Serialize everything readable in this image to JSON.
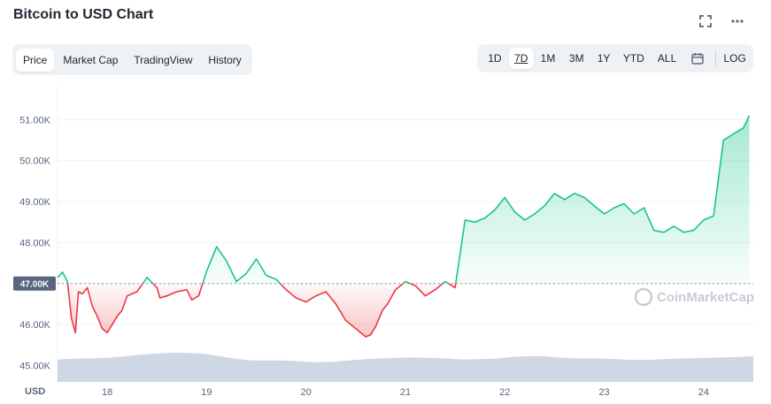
{
  "page": {
    "title": "Bitcoin to USD Chart"
  },
  "header_icons": [
    {
      "name": "expand-icon"
    },
    {
      "name": "more-options-icon"
    }
  ],
  "tabs": [
    {
      "label": "Price",
      "active": true
    },
    {
      "label": "Market Cap",
      "active": false
    },
    {
      "label": "TradingView",
      "active": false
    },
    {
      "label": "History",
      "active": false
    }
  ],
  "ranges": [
    {
      "label": "1D",
      "active": false
    },
    {
      "label": "7D",
      "active": true
    },
    {
      "label": "1M",
      "active": false
    },
    {
      "label": "3M",
      "active": false
    },
    {
      "label": "1Y",
      "active": false
    },
    {
      "label": "YTD",
      "active": false
    },
    {
      "label": "ALL",
      "active": false
    }
  ],
  "calendar_icon": "calendar-icon",
  "log_label": "LOG",
  "watermark": "CoinMarketCap",
  "colors": {
    "up": "#16c784",
    "down": "#ea3943",
    "volume": "#cfd6e4",
    "grid": "#eff2f5",
    "current_badge": "#58667e"
  },
  "chart_data": {
    "type": "line",
    "currency_label": "USD",
    "y_ticks": [
      "45.00K",
      "46.00K",
      "47.00K",
      "48.00K",
      "49.00K",
      "50.00K",
      "51.00K"
    ],
    "y_tick_values": [
      45000,
      46000,
      47000,
      48000,
      49000,
      50000,
      51000
    ],
    "ylim": [
      44600,
      51850
    ],
    "x_ticks": [
      "18",
      "19",
      "20",
      "21",
      "22",
      "23",
      "24"
    ],
    "x_tick_values": [
      0.5,
      1.5,
      2.5,
      3.5,
      4.5,
      5.5,
      6.5
    ],
    "xlim": [
      0,
      7
    ],
    "baseline_label": "47.00K",
    "baseline": 47000,
    "grid": true,
    "series": [
      {
        "x": [
          0.0,
          0.05,
          0.1,
          0.14,
          0.18,
          0.21,
          0.25,
          0.3,
          0.35,
          0.4,
          0.45,
          0.5,
          0.55,
          0.6,
          0.65,
          0.7,
          0.8,
          0.9,
          1.0,
          1.03,
          1.1,
          1.2,
          1.3,
          1.35,
          1.42,
          1.5,
          1.6,
          1.7,
          1.8,
          1.9,
          2.0,
          2.1,
          2.2,
          2.3,
          2.4,
          2.5,
          2.6,
          2.7,
          2.8,
          2.9,
          3.0,
          3.1,
          3.15,
          3.2,
          3.27,
          3.32,
          3.4,
          3.5,
          3.6,
          3.7,
          3.8,
          3.9,
          4.0,
          4.1,
          4.2,
          4.3,
          4.4,
          4.5,
          4.6,
          4.7,
          4.8,
          4.9,
          5.0,
          5.1,
          5.2,
          5.3,
          5.4,
          5.5,
          5.6,
          5.7,
          5.8,
          5.9,
          6.0,
          6.1,
          6.2,
          6.3,
          6.4,
          6.5,
          6.6,
          6.7,
          6.8,
          6.9,
          6.96
        ],
        "y": [
          47150,
          47280,
          47050,
          46150,
          45800,
          46800,
          46750,
          46900,
          46450,
          46200,
          45900,
          45800,
          46000,
          46200,
          46350,
          46700,
          46800,
          47150,
          46900,
          46650,
          46700,
          46800,
          46850,
          46600,
          46700,
          47300,
          47900,
          47550,
          47050,
          47250,
          47600,
          47200,
          47100,
          46850,
          46650,
          46550,
          46700,
          46800,
          46500,
          46100,
          45900,
          45700,
          45750,
          45950,
          46350,
          46500,
          46850,
          47050,
          46950,
          46700,
          46850,
          47050,
          46900,
          48550,
          48500,
          48600,
          48800,
          49100,
          48750,
          48550,
          48700,
          48900,
          49200,
          49050,
          49200,
          49100,
          48900,
          48700,
          48850,
          48950,
          48700,
          48850,
          48300,
          48250,
          48400,
          48250,
          48300,
          48550,
          48650,
          50500,
          50650,
          50800,
          51100
        ]
      }
    ],
    "volume": [
      0.52,
      0.54,
      0.55,
      0.56,
      0.59,
      0.63,
      0.66,
      0.68,
      0.68,
      0.66,
      0.6,
      0.54,
      0.5,
      0.5,
      0.5,
      0.48,
      0.46,
      0.47,
      0.5,
      0.53,
      0.55,
      0.56,
      0.57,
      0.56,
      0.55,
      0.52,
      0.53,
      0.54,
      0.58,
      0.6,
      0.6,
      0.57,
      0.55,
      0.55,
      0.54,
      0.52,
      0.51,
      0.52,
      0.54,
      0.55,
      0.56,
      0.57,
      0.58,
      0.6
    ]
  }
}
